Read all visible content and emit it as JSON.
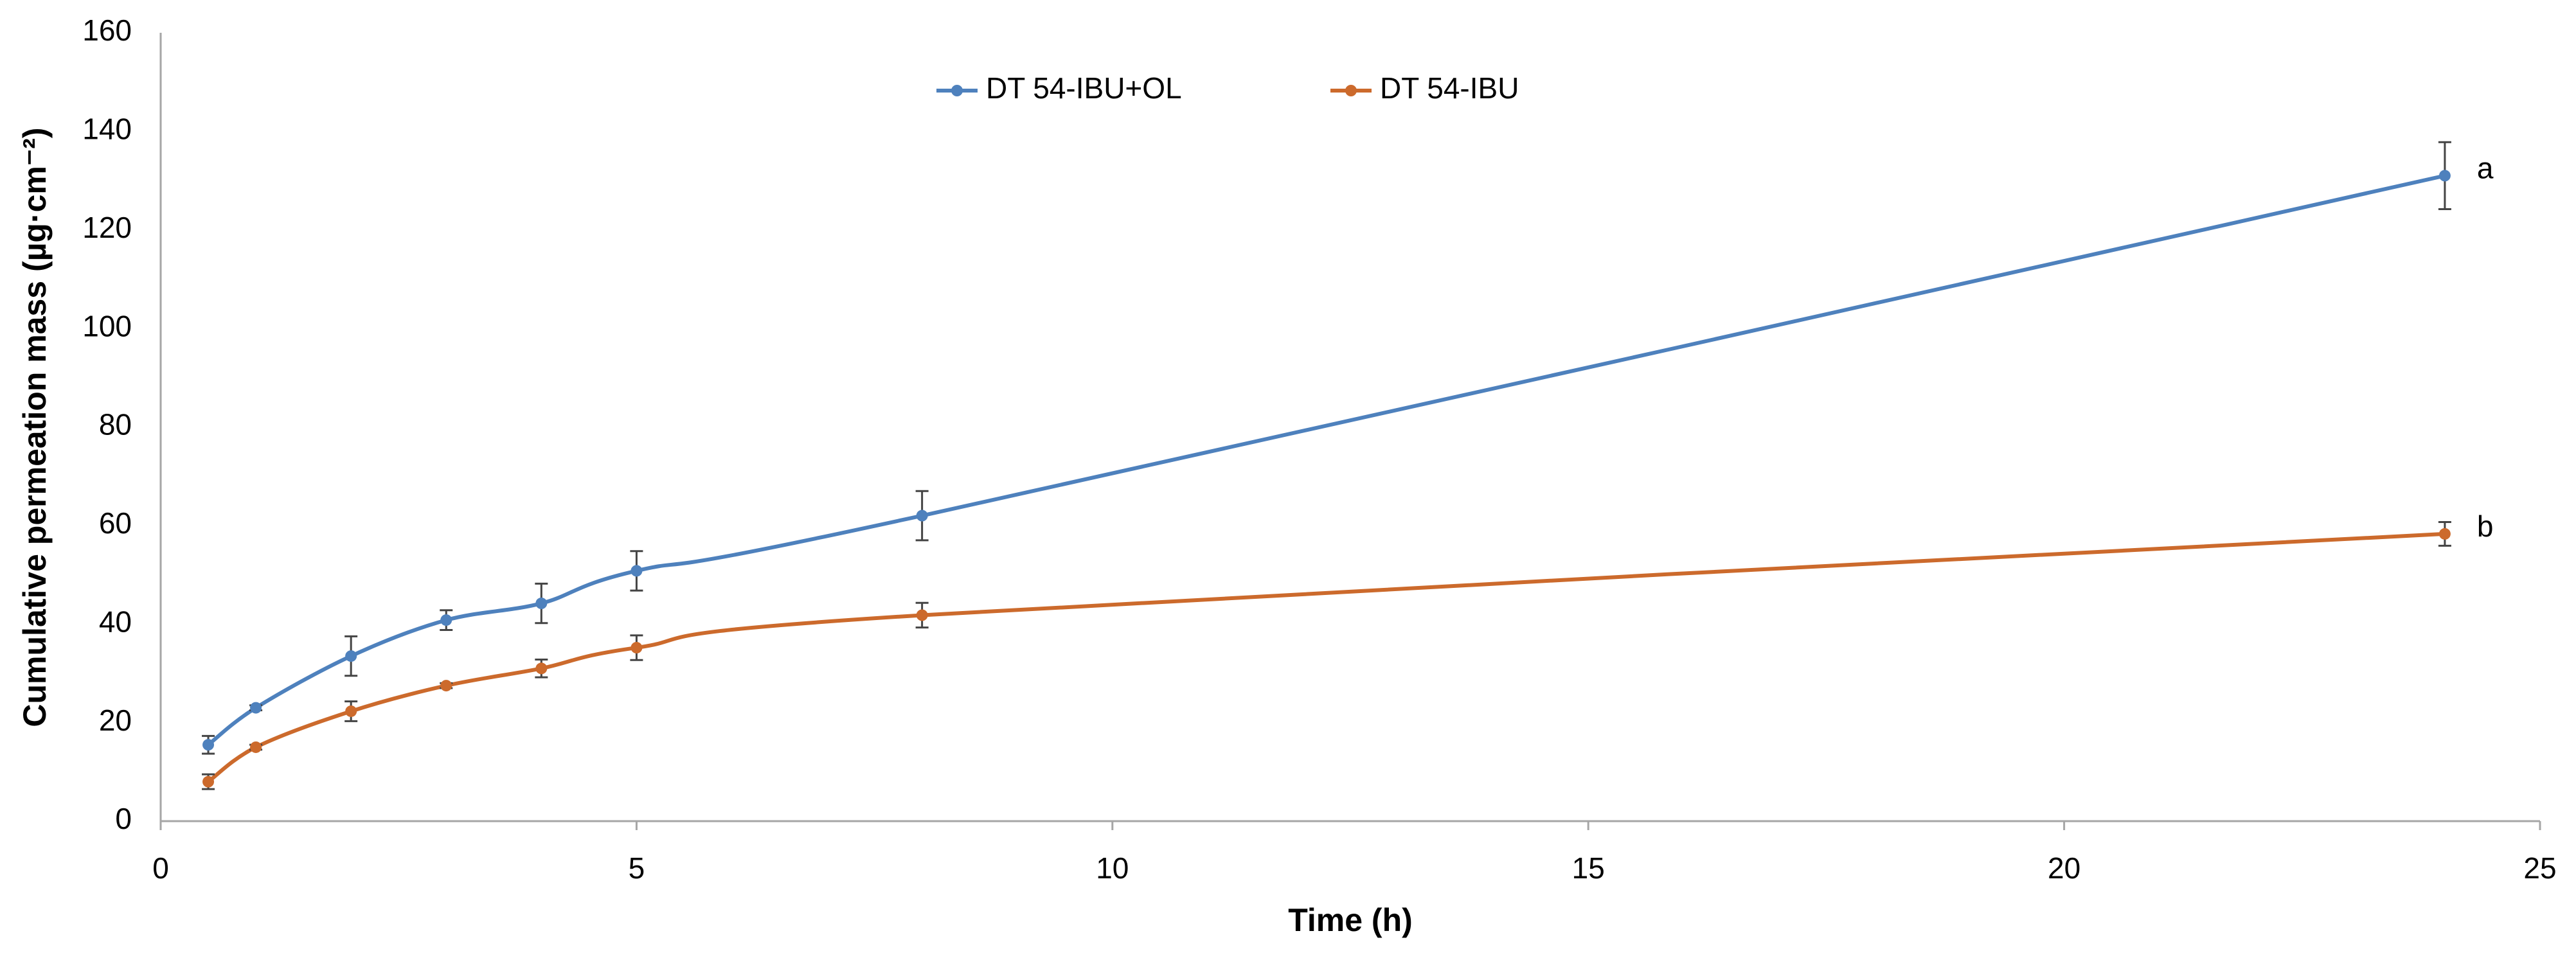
{
  "chart_data": {
    "type": "line",
    "xlabel": "Time (h)",
    "ylabel": "Cumulative permeation mass (µg·cm⁻²)",
    "x": [
      0.5,
      1,
      2,
      3,
      4,
      5,
      8,
      24
    ],
    "series": [
      {
        "name": "DT 54-IBU+OL",
        "color": "#4e81bd",
        "values": [
          15.5,
          23,
          33.5,
          40.8,
          44.2,
          50.8,
          62,
          131
        ],
        "errors": [
          1.8,
          0.5,
          4,
          2,
          4,
          4,
          5,
          6.8
        ]
      },
      {
        "name": "DT 54-IBU",
        "color": "#cc6a2c",
        "values": [
          8,
          15,
          22.3,
          27.5,
          31,
          35.2,
          41.8,
          58.3
        ],
        "errors": [
          1.5,
          0.5,
          2,
          0.5,
          1.8,
          2.5,
          2.5,
          2.4
        ]
      }
    ],
    "annotations": [
      "a",
      "b"
    ],
    "xlim": [
      0,
      25
    ],
    "xticks": [
      0,
      5,
      10,
      15,
      20,
      25
    ],
    "ylim": [
      0,
      160
    ],
    "yticks": [
      0,
      20,
      40,
      60,
      80,
      100,
      120,
      140,
      160
    ],
    "grid": false,
    "legend": "top",
    "smooth": true
  }
}
